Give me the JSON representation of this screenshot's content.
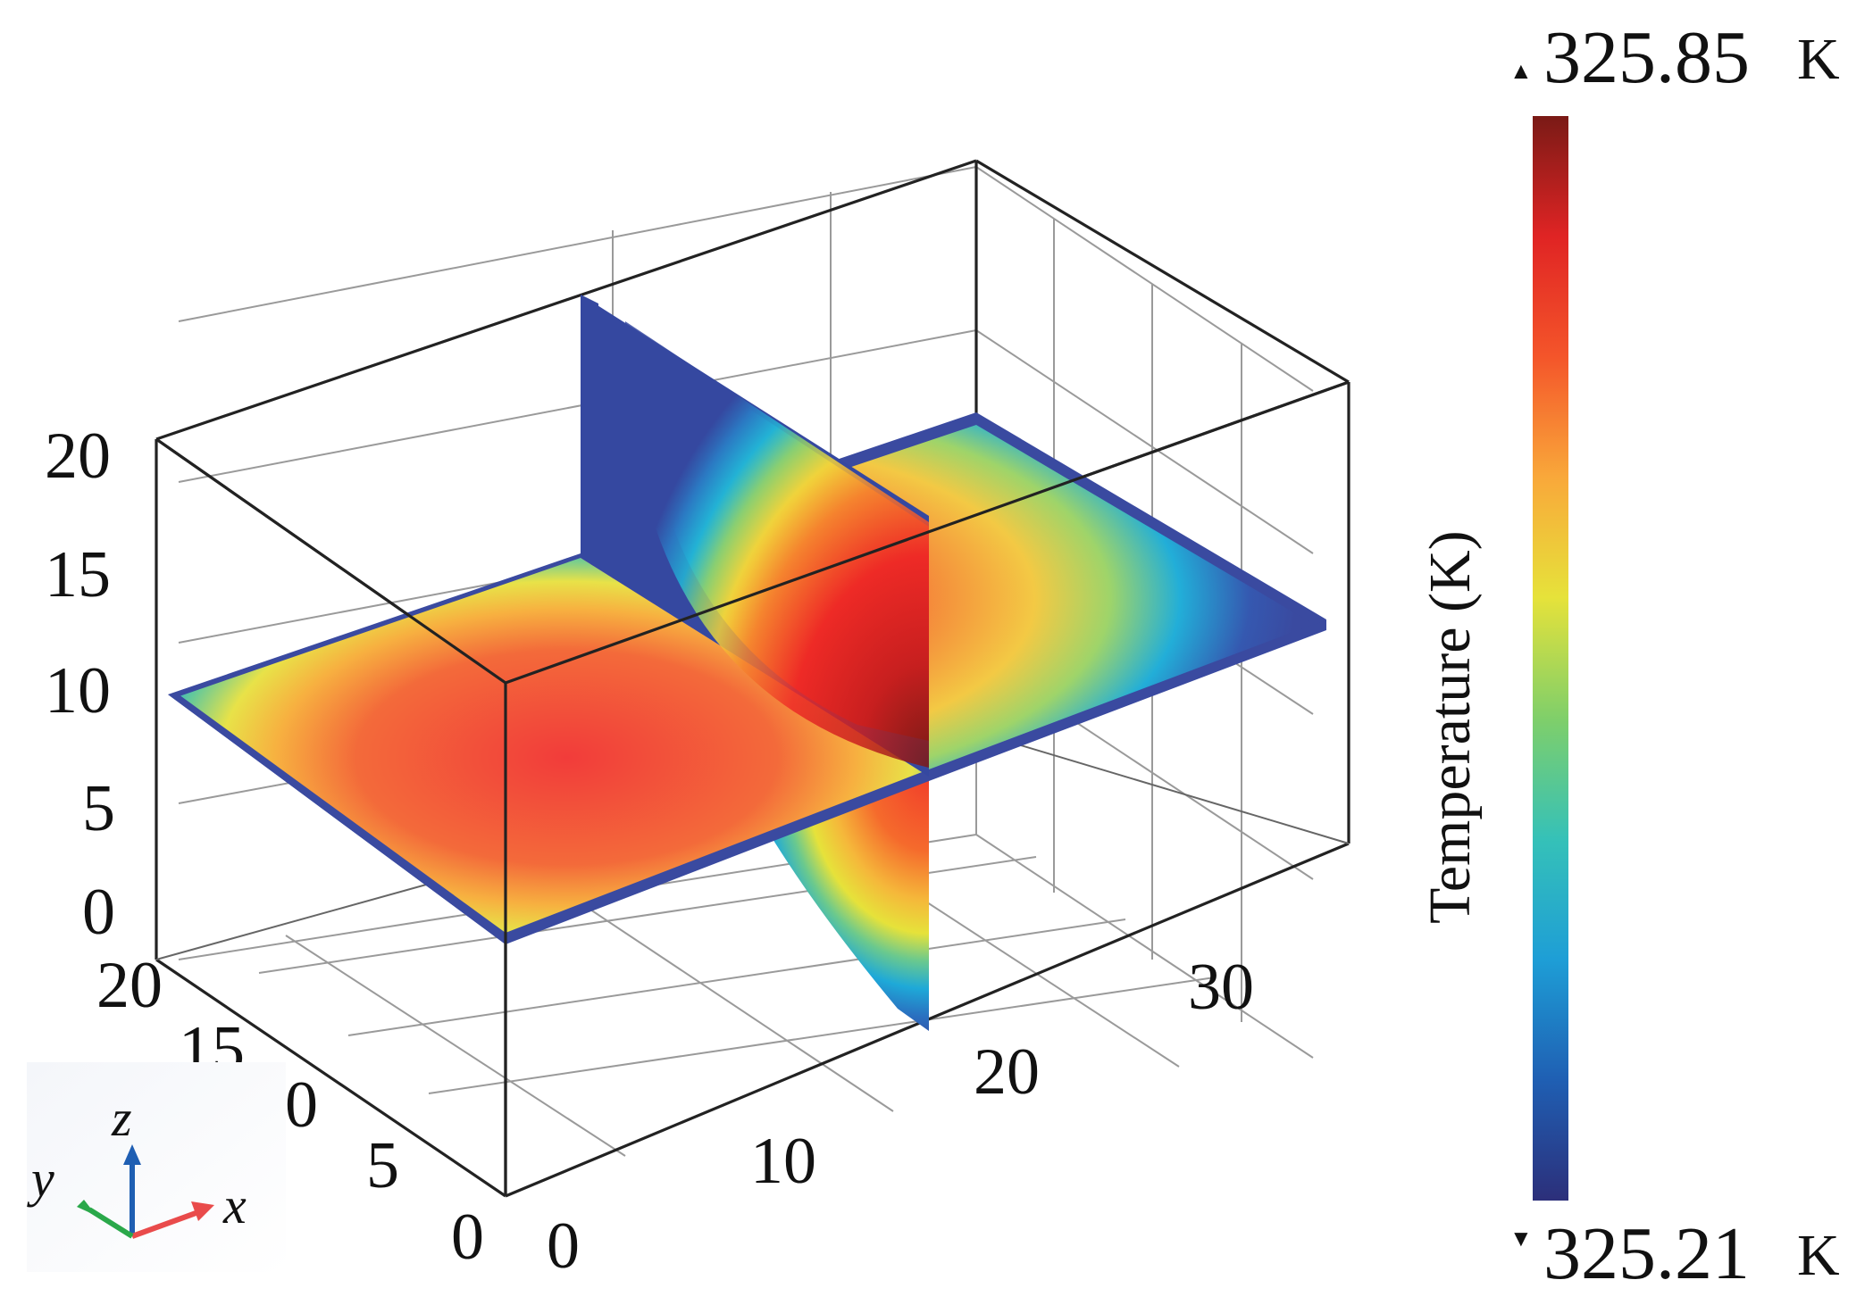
{
  "figure": {
    "z_ticks": [
      "20",
      "15",
      "10",
      "5",
      "0"
    ],
    "y_ticks": [
      "20",
      "15",
      "10",
      "5",
      "0"
    ],
    "x_ticks": [
      "0",
      "10",
      "20",
      "30"
    ]
  },
  "colorbar": {
    "title": "Temperature (K)",
    "max_value": "325.85",
    "min_value": "325.21",
    "unit": "K",
    "max_marker": "▲",
    "min_marker": "▼",
    "colormap": [
      "#2c2f7a",
      "#1f5fb3",
      "#1e9ed6",
      "#35c1b8",
      "#7fcf6a",
      "#e6e23a",
      "#f9a83a",
      "#f4552a",
      "#e02424",
      "#7a1a16"
    ]
  },
  "orientation_triad": {
    "z": "z",
    "y": "y",
    "x": "x"
  },
  "colors": {
    "cold": "#3a4aa0",
    "hot": "#a0161a",
    "z_axis": "#1f5fb3",
    "y_axis": "#2aa84a",
    "x_axis": "#e94b4b"
  }
}
